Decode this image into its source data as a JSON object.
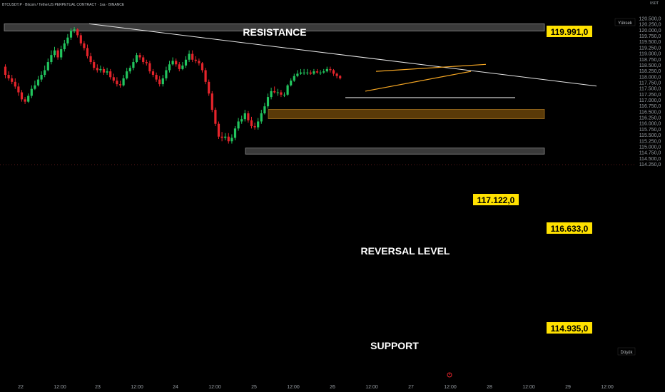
{
  "header": {
    "symbol_line": "BTCUSDT.P · Bitcoin / TetherUS PERPETUAL CONTRACT · 1sa · BINANCE",
    "currency": "USDT"
  },
  "zones": {
    "resistance_label": "RESISTANCE",
    "reversal_label": "REVERSAL LEVEL",
    "support_label": "SUPPORT"
  },
  "price_tags": {
    "resistance": "119.991,0",
    "breakout": "117.122,0",
    "reversal": "116.633,0",
    "support": "114.935,0"
  },
  "axis_markers": {
    "high": "Yüksek",
    "low": "Düşük"
  },
  "colors": {
    "up": "#22c55e",
    "down": "#e5242b",
    "resistance_zone": "#3a3a3a",
    "reversal_zone": "#5a3a08",
    "support_zone": "#3a3a3a",
    "tag_bg": "#ffe100",
    "wedge": "#f5a623",
    "trendline": "#e6e6e6"
  },
  "chart_data": {
    "type": "candlestick",
    "title": "BTCUSDT.P · Bitcoin / TetherUS PERPETUAL CONTRACT · 1sa · BINANCE",
    "interval": "1h",
    "currency": "USDT",
    "x_tick_labels": [
      "22",
      "12:00",
      "23",
      "12:00",
      "24",
      "12:00",
      "25",
      "12:00",
      "26",
      "12:00",
      "27",
      "12:00",
      "28",
      "12:00",
      "29",
      "12:00"
    ],
    "y_tick_labels": [
      "120.500,0",
      "120.250,0",
      "120.000,0",
      "119.750,0",
      "119.500,0",
      "119.250,0",
      "119.000,0",
      "118.750,0",
      "118.500,0",
      "118.250,0",
      "118.000,0",
      "117.750,0",
      "117.500,0",
      "117.250,0",
      "117.000,0",
      "116.750,0",
      "116.500,0",
      "116.250,0",
      "116.000,0",
      "115.750,0",
      "115.500,0",
      "115.250,0",
      "115.000,0",
      "114.750,0",
      "114.500,0",
      "114.250,0"
    ],
    "ylim": [
      114250,
      120500
    ],
    "zones": [
      {
        "label": "RESISTANCE",
        "low": 119980,
        "high": 120290
      },
      {
        "label": "REVERSAL LEVEL",
        "low": 116220,
        "high": 116620
      },
      {
        "label": "SUPPORT",
        "low": 114700,
        "high": 114960
      }
    ],
    "levels": [
      {
        "name": "resistance",
        "value": 119991
      },
      {
        "name": "breakout",
        "value": 117122
      },
      {
        "name": "reversal",
        "value": 116633
      },
      {
        "name": "support",
        "value": 114935
      }
    ],
    "trendline": {
      "from_time": "Jul 23 00:00",
      "from_price": 120290,
      "to_time": "Jul 28 21:00",
      "to_price": 117620
    },
    "rising_wedge": {
      "upper": {
        "from_time": "Jul 26 12:00",
        "from_price": 118250,
        "to_time": "Jul 28 02:00",
        "to_price": 118550
      },
      "lower": {
        "from_time": "Jul 26 15:00",
        "from_price": 117400,
        "to_time": "Jul 28 00:00",
        "to_price": 118250
      }
    },
    "series": [
      {
        "name": "BTCUSDT.P",
        "open": [
          118450,
          118100,
          117950,
          117800,
          117600,
          117350,
          117050,
          116950,
          117200,
          117500,
          117650,
          117900,
          118100,
          118300,
          118650,
          118950,
          119150,
          118850,
          119200,
          119450,
          119700,
          120000,
          120050,
          119800,
          119450,
          119250,
          118900,
          118650,
          118400,
          118300,
          118350,
          118200,
          118250,
          118000,
          117850,
          117700,
          117650,
          117950,
          118250,
          118400,
          118650,
          118950,
          118850,
          118650,
          118600,
          118250,
          118100,
          117900,
          117700,
          117950,
          118300,
          118550,
          118700,
          118550,
          118350,
          118500,
          118750,
          119000,
          118750,
          118700,
          118600,
          118300,
          117800,
          117300,
          116600,
          116000,
          115450,
          115400,
          115450,
          115250,
          115400,
          115800,
          116100,
          116200,
          116450,
          116150,
          115900,
          115850,
          116100,
          116450,
          116750,
          117150,
          117400,
          117350,
          117350,
          117250,
          117250,
          117650,
          117850,
          118050,
          118150,
          118200,
          118200,
          118200,
          118150,
          118250,
          118200,
          118200,
          118250,
          118350,
          118300,
          118150,
          118050
        ],
        "close": [
          118100,
          117950,
          117800,
          117600,
          117350,
          117050,
          116950,
          117200,
          117500,
          117650,
          117900,
          118100,
          118300,
          118650,
          118950,
          119150,
          118850,
          119200,
          119450,
          119700,
          120000,
          120050,
          119800,
          119450,
          119250,
          118900,
          118650,
          118400,
          118300,
          118350,
          118200,
          118250,
          118000,
          117850,
          117700,
          117650,
          117950,
          118250,
          118400,
          118650,
          118950,
          118850,
          118650,
          118600,
          118250,
          118100,
          117900,
          117700,
          117950,
          118300,
          118550,
          118700,
          118550,
          118350,
          118500,
          118750,
          119000,
          118750,
          118700,
          118600,
          118300,
          117800,
          117300,
          116600,
          116000,
          115450,
          115400,
          115450,
          115250,
          115400,
          115800,
          116100,
          116200,
          116450,
          116150,
          115900,
          115850,
          116100,
          116450,
          116750,
          117150,
          117400,
          117350,
          117350,
          117250,
          117250,
          117650,
          117850,
          118050,
          118150,
          118200,
          118200,
          118200,
          118150,
          118250,
          118200,
          118200,
          118250,
          118350,
          118300,
          118150,
          118050,
          117950
        ],
        "high": [
          118550,
          118250,
          118100,
          117950,
          117750,
          117450,
          117150,
          117300,
          117650,
          117850,
          118050,
          118250,
          118500,
          118800,
          119150,
          119300,
          119250,
          119350,
          119600,
          119850,
          120100,
          120150,
          120100,
          119900,
          119550,
          119400,
          119050,
          118750,
          118550,
          118500,
          118450,
          118400,
          118350,
          118150,
          118000,
          117850,
          118100,
          118400,
          118500,
          118800,
          119050,
          119050,
          118950,
          118750,
          118700,
          118350,
          118200,
          118050,
          118100,
          118450,
          118700,
          118850,
          118800,
          118650,
          118650,
          118900,
          119150,
          119150,
          118900,
          118800,
          118650,
          118400,
          117900,
          117400,
          116700,
          116100,
          115650,
          115600,
          115600,
          115550,
          115900,
          116250,
          116350,
          116600,
          116550,
          116300,
          116050,
          116250,
          116600,
          116900,
          117300,
          117550,
          117600,
          117500,
          117450,
          117350,
          117700,
          117950,
          118150,
          118300,
          118350,
          118350,
          118350,
          118300,
          118350,
          118350,
          118300,
          118350,
          118450,
          118450,
          118350,
          118200,
          118100
        ],
        "low": [
          117950,
          117850,
          117700,
          117500,
          117200,
          116950,
          116850,
          116900,
          117100,
          117450,
          117600,
          117800,
          118000,
          118250,
          118550,
          118850,
          118750,
          118750,
          119100,
          119350,
          119600,
          119900,
          119700,
          119350,
          119150,
          118800,
          118550,
          118300,
          118200,
          118200,
          118100,
          118100,
          117900,
          117750,
          117600,
          117550,
          117600,
          117900,
          118150,
          118300,
          118600,
          118750,
          118550,
          118500,
          118150,
          118000,
          117800,
          117600,
          117600,
          117850,
          118200,
          118500,
          118450,
          118250,
          118300,
          118400,
          118650,
          118650,
          118600,
          118500,
          118200,
          117700,
          117200,
          116500,
          115900,
          115350,
          115250,
          115300,
          115150,
          115150,
          115300,
          115700,
          116000,
          116100,
          116050,
          115800,
          115750,
          115750,
          116000,
          116400,
          116650,
          117050,
          117300,
          117200,
          117150,
          117150,
          117200,
          117600,
          117800,
          118000,
          118100,
          118100,
          118100,
          118100,
          118100,
          118150,
          118100,
          118150,
          118200,
          118200,
          118050,
          117950,
          117900
        ]
      }
    ],
    "start_time": "Jul 21 21:00",
    "grid": false,
    "legend": "none"
  }
}
